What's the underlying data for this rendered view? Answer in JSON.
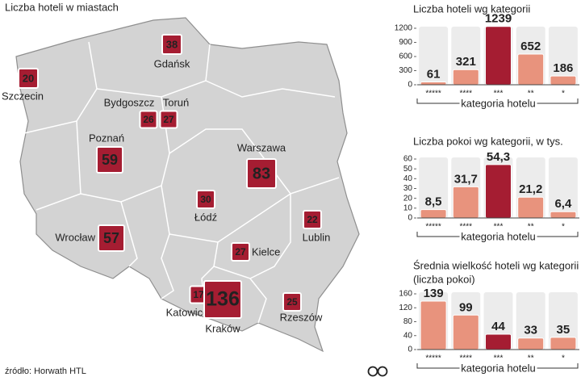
{
  "chart_data": [
    {
      "type": "map",
      "title": "Liczba hoteli w miastach",
      "categories": [
        "Gdańsk",
        "Szczecin",
        "Bydgoszcz",
        "Toruń",
        "Poznań",
        "Warszawa",
        "Łódź",
        "Lublin",
        "Wrocław",
        "Kielce",
        "Katowice",
        "Kraków",
        "Rzeszów"
      ],
      "values": [
        38,
        20,
        26,
        27,
        59,
        83,
        30,
        22,
        57,
        27,
        17,
        136,
        25
      ],
      "color": "#a51d32"
    },
    {
      "type": "bar",
      "title": "Liczba hoteli wg kategorii",
      "xlabel": "kategoria hotelu",
      "categories": [
        "*****",
        "****",
        "***",
        "**",
        "*"
      ],
      "values": [
        61,
        321,
        1239,
        652,
        186
      ],
      "colors": [
        "#e8937d",
        "#e8937d",
        "#a51d32",
        "#e8937d",
        "#e8937d"
      ],
      "ylim": [
        0,
        1250
      ],
      "yticks": [
        0,
        300,
        600,
        900,
        1200
      ]
    },
    {
      "type": "bar",
      "title": "Liczba pokoi wg kategorii, w tys.",
      "xlabel": "kategoria hotelu",
      "categories": [
        "*****",
        "****",
        "***",
        "**",
        "*"
      ],
      "values": [
        8.5,
        31.7,
        54.3,
        21.2,
        6.4
      ],
      "value_labels": [
        "8,5",
        "31,7",
        "54,3",
        "21,2",
        "6,4"
      ],
      "colors": [
        "#e8937d",
        "#e8937d",
        "#a51d32",
        "#e8937d",
        "#e8937d"
      ],
      "ylim": [
        0,
        60
      ],
      "yticks": [
        0,
        10,
        20,
        30,
        40,
        50,
        60
      ]
    },
    {
      "type": "bar",
      "title": "Średnia wielkość hoteli wg kategorii",
      "subtitle": "(liczba pokoi)",
      "xlabel": "kategoria hotelu",
      "categories": [
        "*****",
        "****",
        "***",
        "**",
        "*"
      ],
      "values": [
        139,
        99,
        44,
        33,
        35
      ],
      "colors": [
        "#e8937d",
        "#e8937d",
        "#a51d32",
        "#e8937d",
        "#e8937d"
      ],
      "ylim": [
        0,
        160
      ],
      "yticks": [
        0,
        40,
        80,
        120,
        160
      ]
    }
  ],
  "source": "źródło: Horwath HTL"
}
